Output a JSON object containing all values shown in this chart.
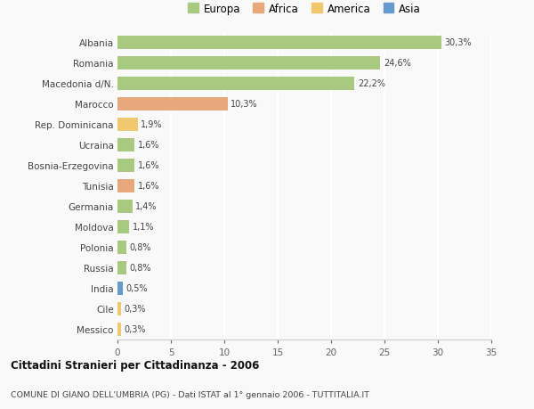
{
  "categories": [
    "Albania",
    "Romania",
    "Macedonia d/N.",
    "Marocco",
    "Rep. Dominicana",
    "Ucraina",
    "Bosnia-Erzegovina",
    "Tunisia",
    "Germania",
    "Moldova",
    "Polonia",
    "Russia",
    "India",
    "Cile",
    "Messico"
  ],
  "values": [
    30.3,
    24.6,
    22.2,
    10.3,
    1.9,
    1.6,
    1.6,
    1.6,
    1.4,
    1.1,
    0.8,
    0.8,
    0.5,
    0.3,
    0.3
  ],
  "labels": [
    "30,3%",
    "24,6%",
    "22,2%",
    "10,3%",
    "1,9%",
    "1,6%",
    "1,6%",
    "1,6%",
    "1,4%",
    "1,1%",
    "0,8%",
    "0,8%",
    "0,5%",
    "0,3%",
    "0,3%"
  ],
  "continent": [
    "Europa",
    "Europa",
    "Europa",
    "Africa",
    "America",
    "Europa",
    "Europa",
    "Africa",
    "Europa",
    "Europa",
    "Europa",
    "Europa",
    "Asia",
    "America",
    "America"
  ],
  "colors": {
    "Europa": "#a8c97f",
    "Africa": "#e8a87c",
    "America": "#f0c96e",
    "Asia": "#6699cc"
  },
  "title1": "Cittadini Stranieri per Cittadinanza - 2006",
  "title2": "COMUNE DI GIANO DELL'UMBRIA (PG) - Dati ISTAT al 1° gennaio 2006 - TUTTITALIA.IT",
  "xlim": [
    0,
    35
  ],
  "xticks": [
    0,
    5,
    10,
    15,
    20,
    25,
    30,
    35
  ],
  "background_color": "#f9f9f9",
  "grid_color": "#ffffff"
}
